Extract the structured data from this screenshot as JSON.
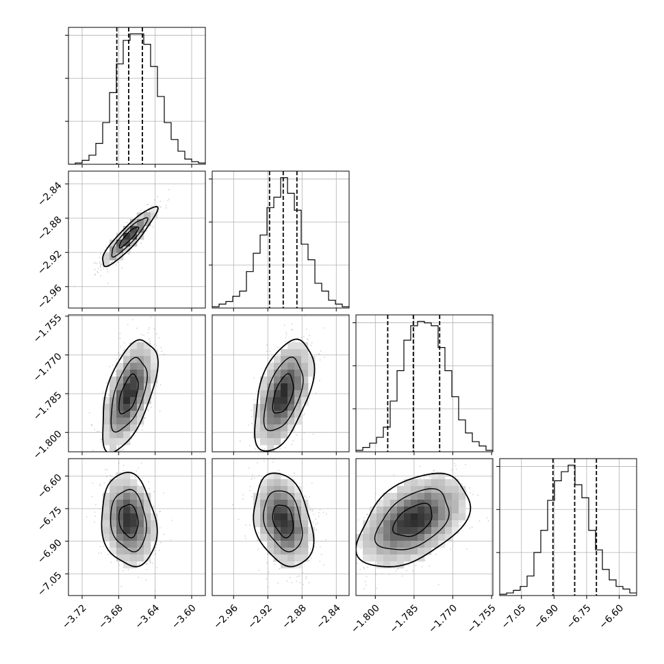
{
  "chart_data": {
    "type": "corner",
    "parameters": [
      {
        "index": 0,
        "range": [
          -3.735,
          -3.585
        ],
        "ticks": [
          -3.72,
          -3.68,
          -3.64,
          -3.6
        ],
        "quantiles": [
          -3.682,
          -3.669,
          -3.654
        ]
      },
      {
        "index": 1,
        "range": [
          -2.985,
          -2.825
        ],
        "ticks": [
          -2.96,
          -2.92,
          -2.88,
          -2.84
        ],
        "quantiles": [
          -2.918,
          -2.902,
          -2.886
        ]
      },
      {
        "index": 2,
        "range": [
          -1.8075,
          -1.7545
        ],
        "ticks": [
          -1.8,
          -1.785,
          -1.77,
          -1.755
        ],
        "quantiles": [
          -1.7952,
          -1.7853,
          -1.7751
        ]
      },
      {
        "index": 3,
        "range": [
          -7.15,
          -6.52
        ],
        "ticks": [
          -7.05,
          -6.9,
          -6.75,
          -6.6
        ],
        "quantiles": [
          -6.905,
          -6.805,
          -6.705
        ]
      }
    ],
    "tick_labels": {
      "p0": [
        "−3.72",
        "−3.68",
        "−3.64",
        "−3.60"
      ],
      "p1": [
        "−2.96",
        "−2.92",
        "−2.88",
        "−2.84"
      ],
      "p2": [
        "−1.800",
        "−1.785",
        "−1.770",
        "−1.755"
      ],
      "p3": [
        "−7.05",
        "−6.90",
        "−6.75",
        "−6.60"
      ]
    },
    "correlations": {
      "1_0": 0.9,
      "2_0": 0.55,
      "2_1": 0.5,
      "3_0": -0.15,
      "3_1": -0.28,
      "3_2": 0.45
    },
    "marginals": {
      "p0": {
        "bin_edges_start": -3.735,
        "bin_width": 0.0075,
        "counts": [
          0,
          1,
          3,
          7,
          16,
          32,
          55,
          77,
          95,
          100,
          100,
          92,
          75,
          52,
          32,
          19,
          10,
          4,
          2,
          1
        ]
      },
      "p1": {
        "bin_edges_start": -2.985,
        "bin_width": 0.008,
        "counts": [
          1,
          3,
          5,
          9,
          13,
          28,
          42,
          56,
          77,
          85,
          100,
          88,
          75,
          49,
          37,
          19,
          13,
          6,
          3,
          1
        ]
      },
      "p2": {
        "bin_edges_start": -1.8075,
        "bin_width": 0.00265,
        "counts": [
          1,
          3,
          6,
          10,
          17,
          35,
          56,
          77,
          87,
          90,
          89,
          87,
          72,
          56,
          38,
          22,
          13,
          7,
          4,
          1
        ]
      },
      "p3": {
        "bin_edges_start": -7.15,
        "bin_width": 0.0315,
        "counts": [
          1,
          2,
          4,
          7,
          15,
          33,
          50,
          73,
          88,
          95,
          100,
          85,
          75,
          50,
          35,
          20,
          12,
          7,
          5,
          2
        ]
      }
    },
    "xlabel": "",
    "ylabel": "",
    "grid": true,
    "style": {
      "line_color": "#000000",
      "grid_color": "#b0b0b0",
      "point_color": "#7f7f7f"
    }
  }
}
